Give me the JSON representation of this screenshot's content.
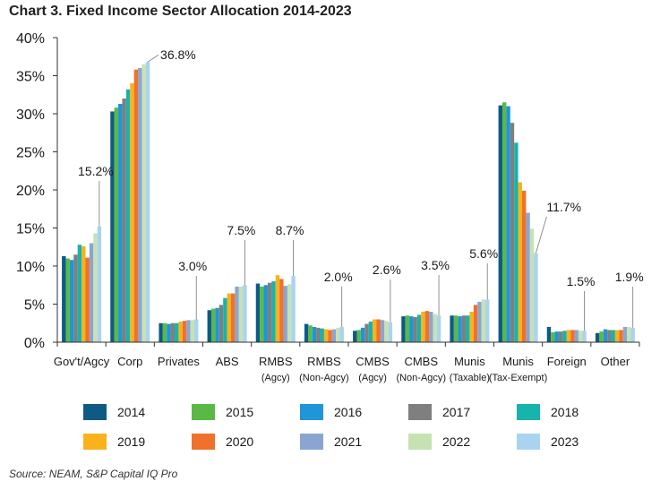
{
  "chart_data": {
    "type": "bar",
    "title": "Chart 3. Fixed Income Sector Allocation 2014-2023",
    "source": "Source: NEAM, S&P Capital IQ Pro",
    "ylim": [
      0,
      40
    ],
    "y_ticks": [
      "0%",
      "5%",
      "10%",
      "15%",
      "20%",
      "25%",
      "30%",
      "35%",
      "40%"
    ],
    "categories": [
      {
        "line1": "Gov't/Agcy",
        "line2": ""
      },
      {
        "line1": "Corp",
        "line2": ""
      },
      {
        "line1": "Privates",
        "line2": ""
      },
      {
        "line1": "ABS",
        "line2": ""
      },
      {
        "line1": "RMBS",
        "line2": "(Agcy)"
      },
      {
        "line1": "RMBS",
        "line2": "(Non-Agcy)"
      },
      {
        "line1": "CMBS",
        "line2": "(Agcy)"
      },
      {
        "line1": "CMBS",
        "line2": "(Non-Agcy)"
      },
      {
        "line1": "Munis",
        "line2": "(Taxable)"
      },
      {
        "line1": "Munis",
        "line2": "(Tax-Exempt)"
      },
      {
        "line1": "Foreign",
        "line2": ""
      },
      {
        "line1": "Other",
        "line2": ""
      }
    ],
    "series": [
      {
        "name": "2014",
        "color": "#0e5a85",
        "values": [
          11.3,
          30.3,
          2.5,
          4.2,
          7.7,
          2.4,
          1.5,
          3.4,
          3.5,
          31.1,
          2.0,
          1.2
        ]
      },
      {
        "name": "2015",
        "color": "#5ab946",
        "values": [
          11.0,
          30.8,
          2.5,
          4.4,
          7.3,
          2.2,
          1.6,
          3.5,
          3.5,
          31.5,
          1.3,
          1.4
        ]
      },
      {
        "name": "2016",
        "color": "#1e96d8",
        "values": [
          10.8,
          31.3,
          2.4,
          4.5,
          7.5,
          2.0,
          1.9,
          3.4,
          3.4,
          31.0,
          1.4,
          1.7
        ]
      },
      {
        "name": "2017",
        "color": "#7f7f7f",
        "values": [
          11.5,
          32.0,
          2.5,
          4.9,
          7.8,
          1.9,
          2.4,
          3.3,
          3.5,
          28.8,
          1.4,
          1.6
        ]
      },
      {
        "name": "2018",
        "color": "#17b3ad",
        "values": [
          12.8,
          33.2,
          2.5,
          5.8,
          8.0,
          1.8,
          2.7,
          3.6,
          3.5,
          26.2,
          1.5,
          1.6
        ]
      },
      {
        "name": "2019",
        "color": "#f9b21b",
        "values": [
          12.6,
          34.0,
          2.7,
          6.4,
          8.8,
          1.7,
          3.0,
          4.0,
          4.0,
          21.0,
          1.6,
          1.6
        ]
      },
      {
        "name": "2020",
        "color": "#f0712b",
        "values": [
          11.1,
          35.8,
          2.8,
          6.4,
          8.3,
          1.6,
          3.0,
          4.1,
          4.9,
          19.9,
          1.6,
          1.6
        ]
      },
      {
        "name": "2021",
        "color": "#8aa6d0",
        "values": [
          13.0,
          36.0,
          2.9,
          7.3,
          7.4,
          1.7,
          2.9,
          4.0,
          5.3,
          17.0,
          1.6,
          2.0
        ]
      },
      {
        "name": "2022",
        "color": "#c6e2b3",
        "values": [
          14.3,
          36.5,
          2.9,
          7.3,
          7.6,
          1.9,
          2.8,
          3.7,
          5.6,
          14.9,
          1.5,
          2.0
        ]
      },
      {
        "name": "2023",
        "color": "#a9d3f0",
        "values": [
          15.2,
          36.8,
          3.0,
          7.5,
          8.7,
          2.0,
          2.6,
          3.5,
          5.6,
          11.7,
          1.5,
          1.9
        ]
      }
    ],
    "annotations": [
      "15.2%",
      "36.8%",
      "3.0%",
      "7.5%",
      "8.7%",
      "2.0%",
      "2.6%",
      "3.5%",
      "5.6%",
      "11.7%",
      "1.5%",
      "1.9%"
    ]
  }
}
